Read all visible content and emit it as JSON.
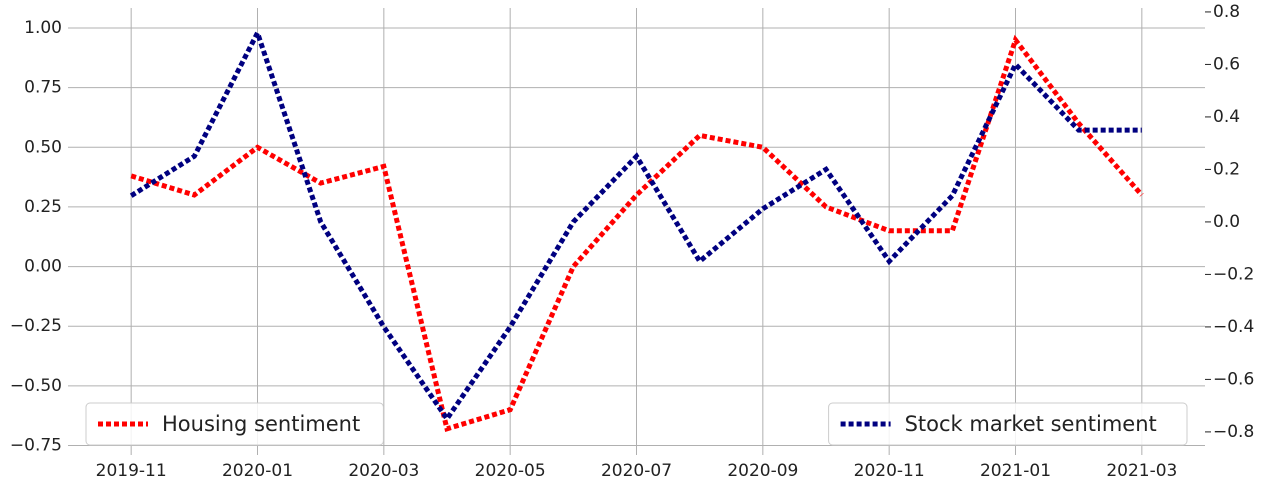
{
  "chart_data": {
    "type": "line",
    "x": [
      "2019-11",
      "2019-12",
      "2020-01",
      "2020-02",
      "2020-03",
      "2020-04",
      "2020-05",
      "2020-06",
      "2020-07",
      "2020-08",
      "2020-09",
      "2020-10",
      "2020-11",
      "2020-12",
      "2021-01",
      "2021-02",
      "2021-03"
    ],
    "xlim": [
      "2019-10",
      "2021-04"
    ],
    "xticks": [
      "2019-11",
      "2020-01",
      "2020-03",
      "2020-05",
      "2020-07",
      "2020-09",
      "2020-11",
      "2021-01",
      "2021-03"
    ],
    "ylim": [
      -0.79,
      1.084
    ],
    "yticks": [
      {
        "value": -0.75,
        "label": "−0.75"
      },
      {
        "value": -0.5,
        "label": "−0.50"
      },
      {
        "value": -0.25,
        "label": "−0.25"
      },
      {
        "value": 0,
        "label": "0.00"
      },
      0.25,
      {
        "value": 0.5,
        "label": "0.50"
      },
      0.75,
      {
        "value": 1,
        "label": "1.00"
      }
    ],
    "y2lim": [
      -0.888,
      0.815
    ],
    "y2ticks": [
      {
        "value": -0.8,
        "label": "−0.8"
      },
      {
        "value": -0.6,
        "label": "−0.6"
      },
      {
        "value": -0.4,
        "label": "−0.4"
      },
      {
        "value": -0.2,
        "label": "−0.2"
      },
      {
        "value": 0,
        "label": "0.0"
      },
      0.2,
      0.4,
      0.6,
      0.8
    ],
    "grid": true,
    "series": [
      {
        "name": "Housing sentiment",
        "color": "#ff0000",
        "legend": "lower left",
        "values": [
          0.38,
          0.3,
          0.5,
          0.35,
          0.42,
          -0.68,
          -0.6,
          0.0,
          0.3,
          0.55,
          0.5,
          0.25,
          0.15,
          0.15,
          0.95,
          0.6,
          0.3
        ]
      },
      {
        "name": "Stock market sentiment",
        "color": "#000080",
        "axis": "y2",
        "legend": "lower right",
        "values": [
          0.1,
          0.25,
          0.72,
          0.0,
          -0.4,
          -0.75,
          -0.4,
          0.0,
          0.25,
          -0.15,
          0.05,
          0.2,
          -0.15,
          0.1,
          0.6,
          0.35,
          0.35
        ]
      }
    ]
  }
}
